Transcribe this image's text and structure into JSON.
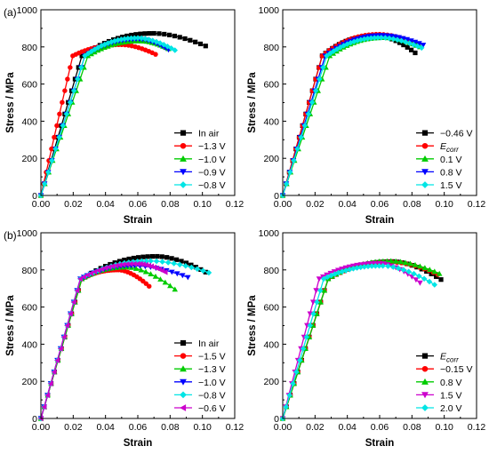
{
  "chart_data": [
    {
      "type": "line",
      "panel_label": "(a)",
      "xlabel": "Strain",
      "ylabel": "Stress / MPa",
      "xlim": [
        0,
        0.12
      ],
      "ylim": [
        0,
        1000
      ],
      "xticks": [
        0.0,
        0.02,
        0.04,
        0.06,
        0.08,
        0.1,
        0.12
      ],
      "xticklabels": [
        "0.00",
        "0.02",
        "0.04",
        "0.06",
        "0.08",
        "0.10",
        "0.12"
      ],
      "yticks": [
        0,
        200,
        400,
        600,
        800,
        1000
      ],
      "yticklabels": [
        "0",
        "200",
        "400",
        "600",
        "800",
        "1000"
      ],
      "legend_position": "bottom-right",
      "series": [
        {
          "name": "In air",
          "color": "#000000",
          "marker": "square",
          "e": 0.027,
          "peak": [
            0.07,
            873
          ],
          "end": [
            0.102,
            805
          ]
        },
        {
          "name": "−1.3 V",
          "color": "#ff0000",
          "marker": "circle",
          "e": 0.021,
          "peak": [
            0.05,
            812
          ],
          "end": [
            0.071,
            760
          ]
        },
        {
          "name": "−1.0 V",
          "color": "#00cc00",
          "marker": "triangle-up",
          "e": 0.031,
          "peak": [
            0.062,
            832
          ],
          "end": [
            0.079,
            790
          ]
        },
        {
          "name": "−0.9 V",
          "color": "#0000ff",
          "marker": "triangle-down",
          "e": 0.029,
          "peak": [
            0.061,
            842
          ],
          "end": [
            0.079,
            785
          ]
        },
        {
          "name": "−0.8 V",
          "color": "#00e5e5",
          "marker": "diamond",
          "e": 0.029,
          "peak": [
            0.06,
            848
          ],
          "end": [
            0.083,
            782
          ]
        }
      ]
    },
    {
      "type": "line",
      "panel_label": "",
      "xlabel": "Strain",
      "ylabel": "Stress / MPa",
      "xlim": [
        0,
        0.12
      ],
      "ylim": [
        0,
        1000
      ],
      "xticks": [
        0.0,
        0.02,
        0.04,
        0.06,
        0.08,
        0.1,
        0.12
      ],
      "xticklabels": [
        "0.00",
        "0.02",
        "0.04",
        "0.06",
        "0.08",
        "0.10",
        "0.12"
      ],
      "yticks": [
        0,
        200,
        400,
        600,
        800,
        1000
      ],
      "yticklabels": [
        "0",
        "200",
        "400",
        "600",
        "800",
        "1000"
      ],
      "legend_position": "bottom-right",
      "series": [
        {
          "name": "−0.46 V",
          "color": "#000000",
          "marker": "square",
          "e": 0.026,
          "peak": [
            0.058,
            862
          ],
          "end": [
            0.082,
            768
          ]
        },
        {
          "name": "E",
          "name_sub": "corr",
          "color": "#ff0000",
          "marker": "circle",
          "e": 0.026,
          "peak": [
            0.06,
            868
          ],
          "end": [
            0.084,
            815
          ]
        },
        {
          "name": "0.1 V",
          "color": "#00cc00",
          "marker": "triangle-up",
          "e": 0.031,
          "peak": [
            0.063,
            850
          ],
          "end": [
            0.085,
            800
          ]
        },
        {
          "name": "0.8 V",
          "color": "#0000ff",
          "marker": "triangle-down",
          "e": 0.028,
          "peak": [
            0.062,
            862
          ],
          "end": [
            0.087,
            810
          ]
        },
        {
          "name": "1.5 V",
          "color": "#00e5e5",
          "marker": "diamond",
          "e": 0.029,
          "peak": [
            0.061,
            850
          ],
          "end": [
            0.086,
            795
          ]
        }
      ]
    },
    {
      "type": "line",
      "panel_label": "(b)",
      "xlabel": "Strain",
      "ylabel": "Stress / MPa",
      "xlim": [
        0,
        0.12
      ],
      "ylim": [
        0,
        1000
      ],
      "xticks": [
        0.0,
        0.02,
        0.04,
        0.06,
        0.08,
        0.1,
        0.12
      ],
      "xticklabels": [
        "0.00",
        "0.02",
        "0.04",
        "0.06",
        "0.08",
        "0.10",
        "0.12"
      ],
      "yticks": [
        0,
        200,
        400,
        600,
        800,
        1000
      ],
      "yticklabels": [
        "0",
        "200",
        "400",
        "600",
        "800",
        "1000"
      ],
      "legend_position": "bottom-right",
      "series": [
        {
          "name": "In air",
          "color": "#000000",
          "marker": "square",
          "e": 0.027,
          "peak": [
            0.072,
            873
          ],
          "end": [
            0.102,
            788
          ]
        },
        {
          "name": "−1.5 V",
          "color": "#ff0000",
          "marker": "circle",
          "e": 0.027,
          "peak": [
            0.048,
            800
          ],
          "end": [
            0.067,
            712
          ]
        },
        {
          "name": "−1.3 V",
          "color": "#00cc00",
          "marker": "triangle-up",
          "e": 0.027,
          "peak": [
            0.053,
            815
          ],
          "end": [
            0.083,
            695
          ]
        },
        {
          "name": "−1.0 V",
          "color": "#0000ff",
          "marker": "triangle-down",
          "e": 0.026,
          "peak": [
            0.058,
            823
          ],
          "end": [
            0.091,
            760
          ]
        },
        {
          "name": "−0.8 V",
          "color": "#00e5e5",
          "marker": "diamond",
          "e": 0.026,
          "peak": [
            0.068,
            848
          ],
          "end": [
            0.104,
            785
          ]
        },
        {
          "name": "−0.6 V",
          "color": "#cc00cc",
          "marker": "triangle-left",
          "e": 0.026,
          "peak": [
            0.06,
            833
          ],
          "end": [
            0.077,
            788
          ]
        }
      ]
    },
    {
      "type": "line",
      "panel_label": "",
      "xlabel": "Strain",
      "ylabel": "Stress / MPa",
      "xlim": [
        0,
        0.12
      ],
      "ylim": [
        0,
        1000
      ],
      "xticks": [
        0.0,
        0.02,
        0.04,
        0.06,
        0.08,
        0.1,
        0.12
      ],
      "xticklabels": [
        "0.00",
        "0.02",
        "0.04",
        "0.06",
        "0.08",
        "0.10",
        "0.12"
      ],
      "yticks": [
        0,
        200,
        400,
        600,
        800,
        1000
      ],
      "yticklabels": [
        "0",
        "200",
        "400",
        "600",
        "800",
        "1000"
      ],
      "legend_position": "bottom-right",
      "series": [
        {
          "name": "E",
          "name_sub": "corr",
          "color": "#000000",
          "marker": "square",
          "e": 0.03,
          "peak": [
            0.068,
            845
          ],
          "end": [
            0.098,
            748
          ]
        },
        {
          "name": "−0.15 V",
          "color": "#ff0000",
          "marker": "circle",
          "e": 0.03,
          "peak": [
            0.068,
            842
          ],
          "end": [
            0.096,
            775
          ]
        },
        {
          "name": "0.8 V",
          "color": "#00cc00",
          "marker": "triangle-up",
          "e": 0.03,
          "peak": [
            0.067,
            848
          ],
          "end": [
            0.097,
            780
          ]
        },
        {
          "name": "1.5 V",
          "color": "#cc00cc",
          "marker": "triangle-down",
          "e": 0.024,
          "peak": [
            0.06,
            835
          ],
          "end": [
            0.085,
            730
          ]
        },
        {
          "name": "2.0 V",
          "color": "#00e5e5",
          "marker": "diamond",
          "e": 0.027,
          "peak": [
            0.062,
            822
          ],
          "end": [
            0.094,
            720
          ]
        }
      ]
    }
  ]
}
